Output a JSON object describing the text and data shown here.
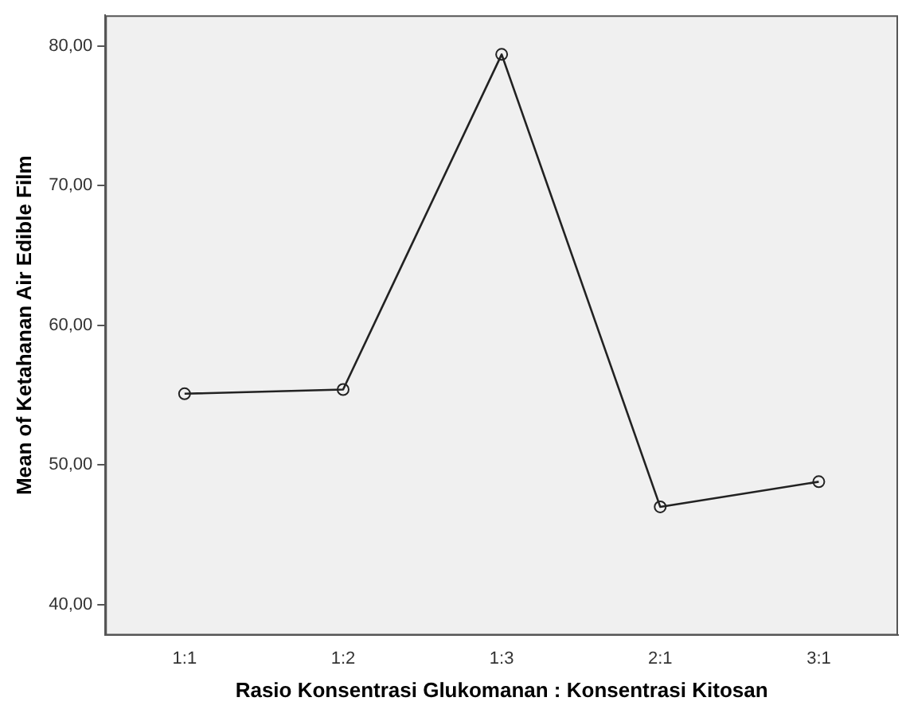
{
  "chart_data": {
    "type": "line",
    "xlabel": "Rasio Konsentrasi Glukomanan : Konsentrasi Kitosan",
    "ylabel": "Mean of Ketahanan Air Edible Film",
    "categories": [
      "1:1",
      "1:2",
      "1:3",
      "2:1",
      "3:1"
    ],
    "series": [
      {
        "color": "#222222",
        "values": [
          55.1,
          55.4,
          79.4,
          47.0,
          48.8
        ]
      }
    ],
    "ylim": [
      37.8,
      82.2
    ],
    "yticks": [
      {
        "value": 40,
        "label": "40,00"
      },
      {
        "value": 50,
        "label": "50,00"
      },
      {
        "value": 60,
        "label": "60,00"
      },
      {
        "value": 70,
        "label": "70,00"
      },
      {
        "value": 80,
        "label": "80,00"
      }
    ],
    "grid": false,
    "legend": false,
    "marker": "circle",
    "line_style": "solid"
  }
}
